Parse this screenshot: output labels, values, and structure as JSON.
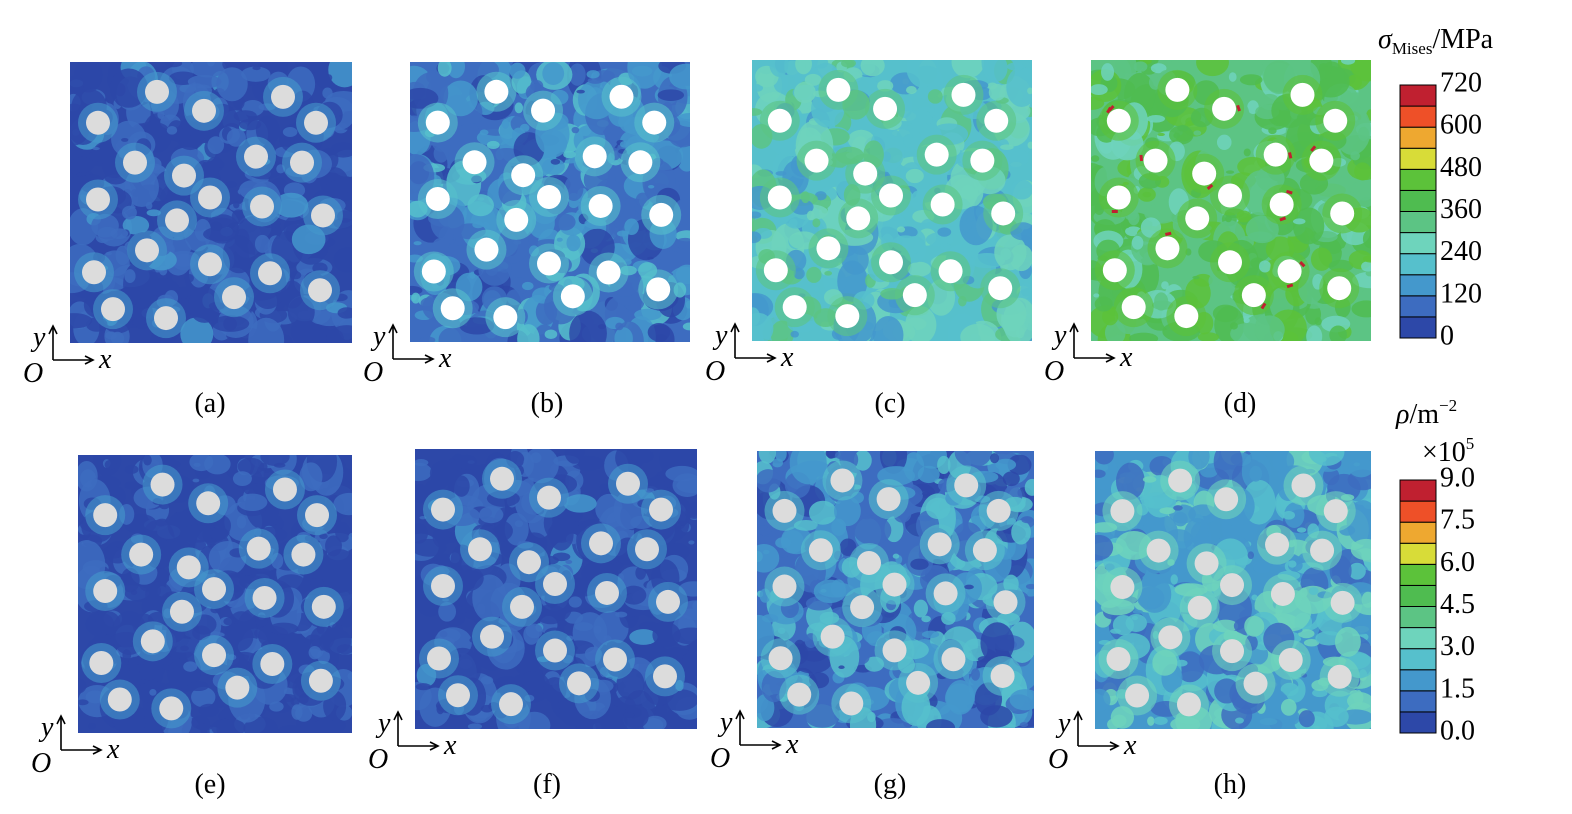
{
  "panels": [
    {
      "label": "(a)"
    },
    {
      "label": "(b)"
    },
    {
      "label": "(c)"
    },
    {
      "label": "(d)"
    },
    {
      "label": "(e)"
    },
    {
      "label": "(f)"
    },
    {
      "label": "(g)"
    },
    {
      "label": "(h)"
    }
  ],
  "axis_labels": {
    "y": "y",
    "origin": "O",
    "x": "x"
  },
  "colorbars": [
    {
      "title": {
        "symbol": "σ",
        "subscript": "Mises",
        "unit": "/MPa"
      },
      "ticks": [
        "720",
        "600",
        "480",
        "360",
        "240",
        "120",
        "0"
      ]
    },
    {
      "title": {
        "symbol": "ρ",
        "unit": "/m",
        "unit_exponent": "−2",
        "multiplier": "×10",
        "multiplier_exponent": "5"
      },
      "ticks": [
        "9.0",
        "7.5",
        "6.0",
        "4.5",
        "3.0",
        "1.5",
        "0.0"
      ]
    }
  ]
}
